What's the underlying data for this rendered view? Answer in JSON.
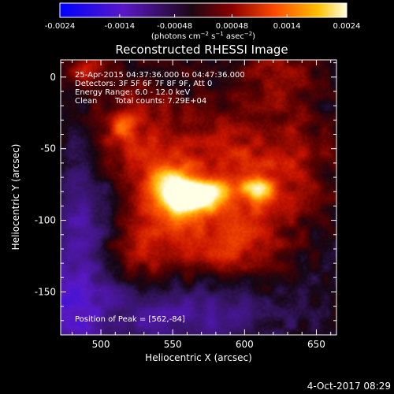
{
  "chart_data": {
    "type": "heatmap",
    "title": "Reconstructed RHESSI Image",
    "xlabel": "Heliocentric X (arcsec)",
    "ylabel": "Heliocentric Y (arcsec)",
    "xlim": [
      472,
      664
    ],
    "ylim": [
      -180,
      12
    ],
    "x_ticks": [
      500,
      550,
      600,
      650
    ],
    "y_ticks": [
      0,
      -50,
      -100,
      -150
    ],
    "colorbar": {
      "ticks": [
        "-0.0024",
        "-0.0014",
        "-0.00048",
        "0.00048",
        "0.0014",
        "0.0024"
      ],
      "range": [
        -0.0024,
        0.0024
      ],
      "unit_label_parts": [
        "(photons cm",
        "−2",
        " s",
        "−1",
        " asec",
        "−2",
        ")"
      ]
    },
    "annotations": [
      "25-Apr-2015 04:37:36.000 to 04:47:36.000",
      "Detectors: 3F 5F 6F 7F 8F 9F, Att 0",
      "Energy Range: 6.0 - 12.0 keV",
      "Clean",
      "Total counts: 7.29E+04"
    ],
    "peak_label": "Position of Peak = [562,-84]",
    "peak": [
      562,
      -84
    ],
    "sources": [
      {
        "x": 562,
        "y": -84,
        "amp": 1.0,
        "sx": 10,
        "sy": 7
      },
      {
        "x": 548,
        "y": -75,
        "amp": 0.6,
        "sx": 12,
        "sy": 10
      },
      {
        "x": 582,
        "y": -80,
        "amp": 0.45,
        "sx": 10,
        "sy": 7
      },
      {
        "x": 610,
        "y": -78,
        "amp": 0.55,
        "sx": 8,
        "sy": 6
      },
      {
        "x": 548,
        "y": -95,
        "amp": 0.35,
        "sx": 14,
        "sy": 12
      },
      {
        "x": 520,
        "y": -40,
        "amp": 0.3,
        "sx": 20,
        "sy": 25
      },
      {
        "x": 575,
        "y": -60,
        "amp": 0.35,
        "sx": 30,
        "sy": 30
      },
      {
        "x": 530,
        "y": -120,
        "amp": 0.28,
        "sx": 25,
        "sy": 18
      },
      {
        "x": 585,
        "y": -125,
        "amp": 0.22,
        "sx": 25,
        "sy": 20
      },
      {
        "x": 630,
        "y": -60,
        "amp": 0.28,
        "sx": 22,
        "sy": 25
      },
      {
        "x": 600,
        "y": -105,
        "amp": 0.3,
        "sx": 20,
        "sy": 15
      },
      {
        "x": 515,
        "y": -35,
        "amp": 0.3,
        "sx": 6,
        "sy": 6
      },
      {
        "x": 490,
        "y": 5,
        "amp": 0.3,
        "sx": 10,
        "sy": 8
      },
      {
        "x": 625,
        "y": 5,
        "amp": 0.22,
        "sx": 20,
        "sy": 15
      }
    ],
    "negative_regions": [
      {
        "x": 485,
        "y": -115,
        "amp": 0.35,
        "sx": 18,
        "sy": 45
      },
      {
        "x": 560,
        "y": -165,
        "amp": 0.35,
        "sx": 45,
        "sy": 18
      },
      {
        "x": 470,
        "y": -170,
        "amp": 0.3,
        "sx": 20,
        "sy": 20
      }
    ]
  },
  "footer": {
    "date": "4-Oct-2017 08:29"
  }
}
